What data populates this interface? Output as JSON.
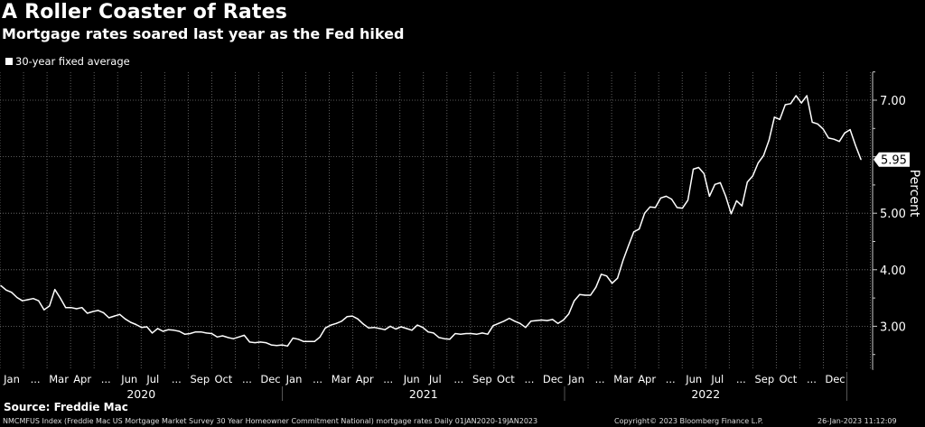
{
  "chart_data": {
    "type": "line",
    "title": "A Roller Coaster of Rates",
    "subtitle": "Mortgage rates soared last year as the Fed hiked",
    "legend": [
      "30-year fixed average"
    ],
    "legend_placement": "top-left",
    "ylabel": "Percent",
    "ylim": [
      2.3,
      7.5
    ],
    "yticks": [
      "3.00",
      "4.00",
      "5.00",
      "6.00",
      "7.00"
    ],
    "ytick_labels_shown": [
      "3.00",
      "4.00",
      "5.00",
      "7.00"
    ],
    "last_value_label": "5.95",
    "x_start": "2020-01-02",
    "x_frequency": "weekly",
    "years": [
      "2020",
      "2021",
      "2022"
    ],
    "month_labels": [
      "Jan",
      "...",
      "Mar",
      "Apr",
      "...",
      "Jun",
      "Jul",
      "...",
      "Sep",
      "Oct",
      "...",
      "Dec"
    ],
    "grid": true,
    "series": [
      {
        "name": "30-year fixed average",
        "values": [
          3.72,
          3.64,
          3.6,
          3.51,
          3.45,
          3.47,
          3.49,
          3.45,
          3.29,
          3.36,
          3.65,
          3.5,
          3.33,
          3.33,
          3.31,
          3.33,
          3.23,
          3.26,
          3.28,
          3.24,
          3.15,
          3.18,
          3.21,
          3.13,
          3.07,
          3.03,
          2.98,
          2.99,
          2.88,
          2.96,
          2.91,
          2.94,
          2.93,
          2.91,
          2.86,
          2.87,
          2.9,
          2.9,
          2.88,
          2.87,
          2.81,
          2.83,
          2.8,
          2.78,
          2.81,
          2.84,
          2.72,
          2.71,
          2.72,
          2.71,
          2.67,
          2.66,
          2.67,
          2.65,
          2.79,
          2.77,
          2.73,
          2.73,
          2.73,
          2.81,
          2.97,
          3.02,
          3.05,
          3.09,
          3.17,
          3.18,
          3.13,
          3.04,
          2.97,
          2.98,
          2.96,
          2.94,
          3.0,
          2.95,
          2.99,
          2.96,
          2.93,
          3.02,
          2.98,
          2.9,
          2.88,
          2.8,
          2.78,
          2.77,
          2.87,
          2.86,
          2.87,
          2.87,
          2.86,
          2.88,
          2.86,
          3.01,
          3.05,
          3.09,
          3.14,
          3.09,
          3.05,
          2.98,
          3.09,
          3.1,
          3.11,
          3.1,
          3.12,
          3.05,
          3.11,
          3.22,
          3.45,
          3.56,
          3.55,
          3.55,
          3.69,
          3.92,
          3.89,
          3.76,
          3.85,
          4.16,
          4.42,
          4.67,
          4.72,
          5.0,
          5.11,
          5.1,
          5.27,
          5.3,
          5.25,
          5.1,
          5.09,
          5.23,
          5.78,
          5.81,
          5.7,
          5.3,
          5.51,
          5.54,
          5.3,
          4.99,
          5.22,
          5.13,
          5.55,
          5.66,
          5.89,
          6.02,
          6.29,
          6.7,
          6.66,
          6.92,
          6.94,
          7.08,
          6.95,
          7.08,
          6.61,
          6.58,
          6.49,
          6.33,
          6.31,
          6.27,
          6.42,
          6.48,
          6.2,
          5.95
        ]
      }
    ]
  },
  "source": "Source: Freddie Mac",
  "footer": {
    "description": "NMCMFUS Index (Freddie Mac US Mortgage Market Survey 30 Year Homeowner Commitment National) mortgage rates  Daily 01JAN2020-19JAN2023",
    "copyright": "Copyright© 2023 Bloomberg Finance L.P.",
    "timestamp": "26-Jan-2023 11:12:09"
  }
}
